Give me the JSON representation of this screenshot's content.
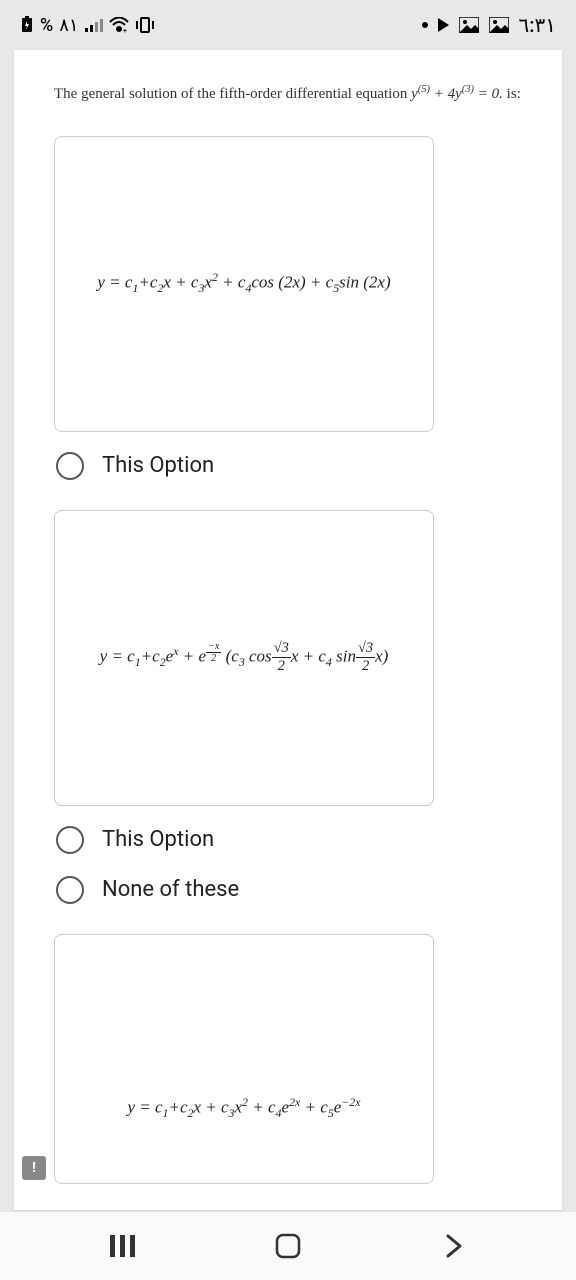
{
  "status_bar": {
    "battery_percent": "٨١",
    "percent_sign": "%",
    "time": "٦:٣١"
  },
  "question": {
    "text_pre": "The general solution of the fifth-order differential equation ",
    "equation_inline": "y⁽⁵⁾ + 4y⁽³⁾ = 0.",
    "text_post": " is:"
  },
  "options": {
    "eq1_html": "<i>y</i> = <i>c</i><sub>1</sub>+<i>c</i><sub>2</sub><i>x</i> + <i>c</i><sub>3</sub><i>x</i><sup>2</sup> + <i>c</i><sub>4</sub>cos (2<i>x</i>) + <i>c</i><sub>5</sub>sin (2<i>x</i>)",
    "eq2_html": "<i>y</i> = <i>c</i><sub>1</sub>+<i>c</i><sub>2</sub><i>e</i><sup><i>x</i></sup> + <i>e</i><sup><span class='frac'><span class='num'>−<i>x</i></span><span class='den'>2</span></span></sup> (<i>c</i><sub>3</sub> cos<span class='frac'><span class='num'>√3</span><span class='den'>2</span></span><i>x</i> + <i>c</i><sub>4</sub> sin<span class='frac'><span class='num'>√3</span><span class='den'>2</span></span><i>x</i>)",
    "eq3_html": "<i>y</i> = <i>c</i><sub>1</sub>+<i>c</i><sub>2</sub><i>x</i> + <i>c</i><sub>3</sub><i>x</i><sup>2</sup> + <i>c</i><sub>4</sub><i>e</i><sup>2<i>x</i></sup> + <i>c</i><sub>5</sub><i>e</i><sup>−2<i>x</i></sup>",
    "label_this_option": "This Option",
    "label_none": "None of these"
  },
  "colors": {
    "page_bg": "#e8e8e8",
    "card_bg": "#ffffff",
    "border": "#cccccc",
    "text": "#222222",
    "radio_border": "#555555"
  }
}
